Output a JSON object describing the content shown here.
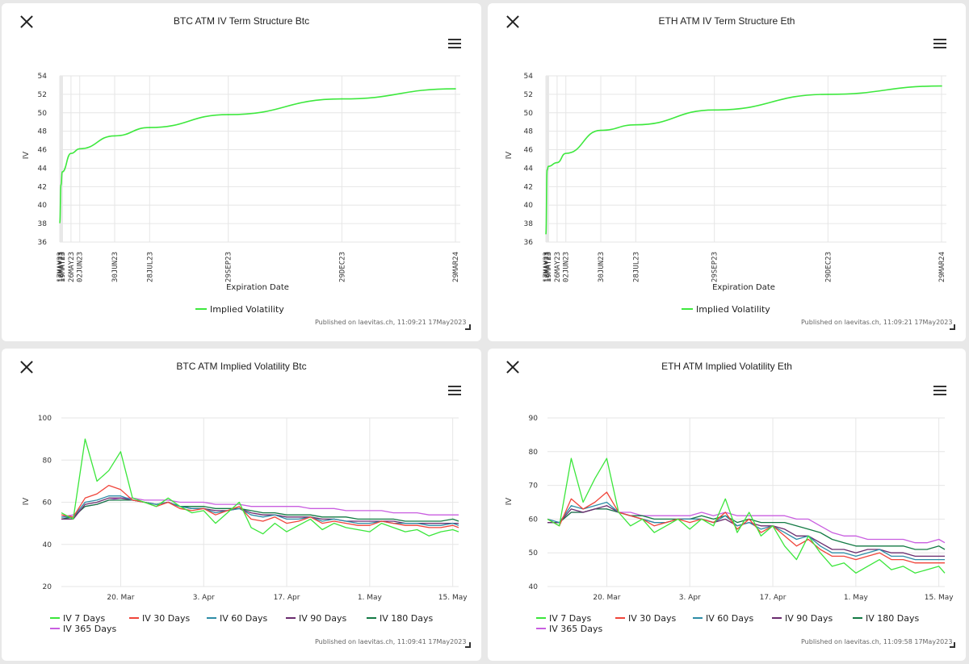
{
  "panels": [
    {
      "id": "btc_term",
      "title": "BTC ATM IV Term Structure Btc",
      "ylabel": "IV",
      "published": "Published on laevitas.ch, 11:09:21 17May2023"
    },
    {
      "id": "eth_term",
      "title": "ETH ATM IV Term Structure Eth",
      "ylabel": "IV",
      "published": "Published on laevitas.ch, 11:09:21 17May2023"
    },
    {
      "id": "btc_iv",
      "title": "BTC ATM Implied Volatility Btc",
      "ylabel": "IV",
      "published": "Published on laevitas.ch, 11:09:41 17May2023"
    },
    {
      "id": "eth_iv",
      "title": "ETH ATM Implied Volatility Eth",
      "ylabel": "IV",
      "published": "Published on laevitas.ch, 11:09:58 17May2023"
    }
  ],
  "chart_data": [
    {
      "type": "line",
      "title": "BTC ATM IV Term Structure Btc",
      "xlabel": "Expiration Date",
      "ylabel": "IV",
      "ylim": [
        36,
        54
      ],
      "yticks": [
        36,
        38,
        40,
        42,
        44,
        46,
        48,
        50,
        52,
        54
      ],
      "categories": [
        "17MAY23",
        "18MAY23",
        "19MAY23",
        "26MAY23",
        "02JUN23",
        "30JUN23",
        "28JUL23",
        "29SEP23",
        "29DEC23",
        "29MAR24"
      ],
      "day_offsets": [
        0,
        1,
        2,
        9,
        16,
        44,
        72,
        135,
        226,
        317
      ],
      "series": [
        {
          "name": "Implied Volatility",
          "color": "#3ee83e",
          "values": [
            38.1,
            42.2,
            43.6,
            45.6,
            46.1,
            47.5,
            48.4,
            49.8,
            51.5,
            52.6
          ]
        }
      ]
    },
    {
      "type": "line",
      "title": "ETH ATM IV Term Structure Eth",
      "xlabel": "Expiration Date",
      "ylabel": "IV",
      "ylim": [
        36,
        54
      ],
      "yticks": [
        36,
        38,
        40,
        42,
        44,
        46,
        48,
        50,
        52,
        54
      ],
      "categories": [
        "17MAY23",
        "18MAY23",
        "19MAY23",
        "26MAY23",
        "02JUN23",
        "30JUN23",
        "28JUL23",
        "29SEP23",
        "29DEC23",
        "29MAR24"
      ],
      "day_offsets": [
        0,
        1,
        2,
        9,
        16,
        44,
        72,
        135,
        226,
        317
      ],
      "series": [
        {
          "name": "Implied Volatility",
          "color": "#3ee83e",
          "values": [
            36.9,
            43.8,
            44.2,
            44.6,
            45.6,
            48.1,
            48.7,
            50.3,
            52.0,
            52.9
          ]
        }
      ]
    },
    {
      "type": "line",
      "title": "BTC ATM Implied Volatility Btc",
      "xlabel": "",
      "ylabel": "IV",
      "ylim": [
        20,
        100
      ],
      "yticks": [
        20,
        40,
        60,
        80,
        100
      ],
      "x_start": "2023-03-10",
      "x_end": "2023-05-17",
      "xticks": [
        "20. Mar",
        "3. Apr",
        "17. Apr",
        "1. May",
        "15. May"
      ],
      "xtick_days": [
        10,
        24,
        38,
        52,
        66
      ],
      "sample_days": [
        0,
        2,
        4,
        6,
        8,
        10,
        12,
        14,
        16,
        18,
        20,
        22,
        24,
        26,
        28,
        30,
        32,
        34,
        36,
        38,
        40,
        42,
        44,
        46,
        48,
        50,
        52,
        54,
        56,
        58,
        60,
        62,
        64,
        66,
        67
      ],
      "series": [
        {
          "name": "IV 7 Days",
          "color": "#3be63b",
          "values": [
            55,
            52,
            90,
            70,
            75,
            84,
            62,
            60,
            58,
            62,
            58,
            55,
            56,
            50,
            55,
            60,
            48,
            45,
            50,
            46,
            49,
            52,
            47,
            50,
            48,
            47,
            46,
            50,
            48,
            46,
            47,
            44,
            46,
            47,
            46
          ]
        },
        {
          "name": "IV 30 Days",
          "color": "#f0443a",
          "values": [
            54,
            53,
            62,
            64,
            68,
            66,
            61,
            60,
            58,
            60,
            57,
            56,
            57,
            54,
            56,
            58,
            52,
            51,
            53,
            50,
            51,
            53,
            50,
            51,
            50,
            49,
            49,
            51,
            50,
            49,
            49,
            48,
            48,
            49,
            48
          ]
        },
        {
          "name": "IV 60 Days",
          "color": "#2d8ca6",
          "values": [
            53,
            53,
            60,
            61,
            63,
            63,
            61,
            60,
            59,
            60,
            58,
            57,
            57,
            55,
            56,
            57,
            54,
            53,
            54,
            52,
            52,
            53,
            51,
            52,
            51,
            50,
            50,
            51,
            50,
            50,
            50,
            49,
            49,
            50,
            49
          ]
        },
        {
          "name": "IV 90 Days",
          "color": "#6a2b6e",
          "values": [
            52,
            52,
            59,
            60,
            62,
            62,
            61,
            60,
            59,
            60,
            58,
            57,
            57,
            56,
            56,
            57,
            55,
            54,
            54,
            53,
            53,
            53,
            52,
            52,
            51,
            51,
            51,
            51,
            51,
            50,
            50,
            50,
            50,
            50,
            50
          ]
        },
        {
          "name": "IV 180 Days",
          "color": "#137a44",
          "values": [
            52,
            53,
            58,
            59,
            61,
            61,
            61,
            60,
            59,
            60,
            58,
            58,
            58,
            57,
            57,
            57,
            56,
            55,
            55,
            54,
            54,
            54,
            53,
            53,
            53,
            52,
            52,
            52,
            52,
            51,
            51,
            51,
            51,
            52,
            51
          ]
        },
        {
          "name": "IV 365 Days",
          "color": "#c95ee0",
          "values": [
            53,
            54,
            58,
            59,
            61,
            62,
            62,
            61,
            61,
            61,
            60,
            60,
            60,
            59,
            59,
            59,
            58,
            58,
            58,
            58,
            58,
            57,
            57,
            57,
            56,
            56,
            56,
            56,
            55,
            55,
            55,
            54,
            54,
            54,
            54
          ]
        }
      ]
    },
    {
      "type": "line",
      "title": "ETH ATM Implied Volatility Eth",
      "xlabel": "",
      "ylabel": "IV",
      "ylim": [
        40,
        90
      ],
      "yticks": [
        40,
        50,
        60,
        70,
        80,
        90
      ],
      "x_start": "2023-03-10",
      "x_end": "2023-05-17",
      "xticks": [
        "20. Mar",
        "3. Apr",
        "17. Apr",
        "1. May",
        "15. May"
      ],
      "xtick_days": [
        10,
        24,
        38,
        52,
        66
      ],
      "sample_days": [
        0,
        2,
        4,
        6,
        8,
        10,
        12,
        14,
        16,
        18,
        20,
        22,
        24,
        26,
        28,
        30,
        32,
        34,
        36,
        38,
        40,
        42,
        44,
        46,
        48,
        50,
        52,
        54,
        56,
        58,
        60,
        62,
        64,
        66,
        67
      ],
      "series": [
        {
          "name": "IV 7 Days",
          "color": "#3be63b",
          "values": [
            60,
            58,
            78,
            65,
            72,
            78,
            62,
            58,
            60,
            56,
            58,
            60,
            57,
            60,
            58,
            66,
            56,
            62,
            55,
            58,
            52,
            48,
            55,
            50,
            46,
            47,
            44,
            46,
            48,
            45,
            46,
            44,
            45,
            46,
            44
          ]
        },
        {
          "name": "IV 30 Days",
          "color": "#f0443a",
          "values": [
            60,
            58,
            66,
            63,
            65,
            68,
            62,
            61,
            60,
            58,
            59,
            60,
            59,
            60,
            59,
            62,
            57,
            60,
            56,
            58,
            55,
            52,
            54,
            51,
            49,
            49,
            48,
            49,
            50,
            48,
            48,
            47,
            47,
            47,
            47
          ]
        },
        {
          "name": "IV 60 Days",
          "color": "#2d8ca6",
          "values": [
            60,
            59,
            64,
            63,
            64,
            65,
            62,
            61,
            60,
            59,
            59,
            60,
            60,
            60,
            59,
            61,
            58,
            59,
            57,
            58,
            56,
            54,
            55,
            52,
            50,
            50,
            49,
            50,
            51,
            49,
            49,
            48,
            48,
            48,
            48
          ]
        },
        {
          "name": "IV 90 Days",
          "color": "#6a2b6e",
          "values": [
            59,
            59,
            63,
            62,
            63,
            64,
            62,
            61,
            60,
            59,
            59,
            60,
            60,
            60,
            59,
            60,
            58,
            59,
            58,
            58,
            57,
            55,
            55,
            53,
            51,
            51,
            50,
            51,
            51,
            50,
            50,
            49,
            49,
            49,
            49
          ]
        },
        {
          "name": "IV 180 Days",
          "color": "#137a44",
          "values": [
            59,
            59,
            62,
            62,
            63,
            63,
            62,
            61,
            61,
            60,
            60,
            60,
            60,
            61,
            60,
            61,
            59,
            60,
            59,
            59,
            59,
            58,
            57,
            56,
            54,
            53,
            52,
            52,
            52,
            52,
            52,
            51,
            51,
            52,
            51
          ]
        },
        {
          "name": "IV 365 Days",
          "color": "#c95ee0",
          "values": [
            59,
            59,
            62,
            62,
            63,
            63,
            62,
            62,
            61,
            61,
            61,
            61,
            61,
            62,
            61,
            62,
            61,
            61,
            61,
            61,
            61,
            60,
            60,
            58,
            56,
            55,
            55,
            54,
            54,
            54,
            54,
            53,
            53,
            54,
            53
          ]
        }
      ]
    }
  ]
}
